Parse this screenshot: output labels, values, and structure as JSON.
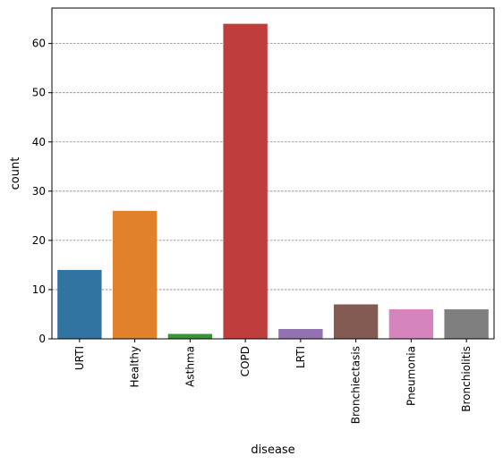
{
  "chart_data": {
    "type": "bar",
    "title": "",
    "xlabel": "disease",
    "ylabel": "count",
    "categories": [
      "URTI",
      "Healthy",
      "Asthma",
      "COPD",
      "LRTI",
      "Bronchiectasis",
      "Pneumonia",
      "Bronchiolitis"
    ],
    "values": [
      14,
      26,
      1,
      64,
      2,
      7,
      6,
      6
    ],
    "colors": [
      "#3274a1",
      "#e1812c",
      "#3a923a",
      "#c03d3e",
      "#9372b2",
      "#845b53",
      "#d684bd",
      "#7f7f7f"
    ],
    "yticks": [
      0,
      10,
      20,
      30,
      40,
      50,
      60
    ],
    "ylim": [
      0,
      67.2
    ],
    "grid": "horizontal-dashed",
    "legend": "none"
  }
}
